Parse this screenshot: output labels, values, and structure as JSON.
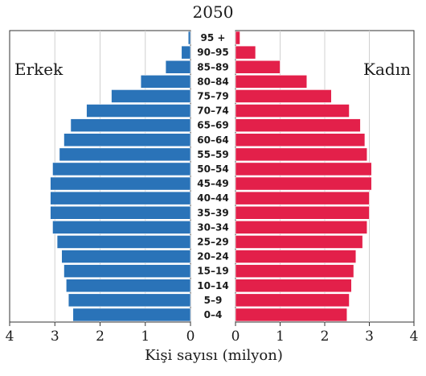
{
  "chart_data": {
    "type": "bar",
    "title": "2050",
    "xlabel": "Kişi sayısı (milyon)",
    "xlim": [
      0,
      4
    ],
    "grid": true,
    "x_ticks": [
      "4",
      "3",
      "2",
      "1",
      "0",
      "0",
      "1",
      "2",
      "3",
      "4"
    ],
    "categories": [
      "95 +",
      "90–95",
      "85–89",
      "80–84",
      "75–79",
      "70–74",
      "65–69",
      "60–64",
      "55–59",
      "50–54",
      "45–49",
      "40–44",
      "35–39",
      "30–34",
      "25–29",
      "20–24",
      "15–19",
      "10–14",
      "5–9",
      "0–4"
    ],
    "series": [
      {
        "name": "Erkek",
        "color": "#2a73b8",
        "values": [
          0.05,
          0.2,
          0.55,
          1.1,
          1.75,
          2.3,
          2.65,
          2.8,
          2.9,
          3.05,
          3.1,
          3.1,
          3.1,
          3.05,
          2.95,
          2.85,
          2.8,
          2.75,
          2.7,
          2.6
        ]
      },
      {
        "name": "Kadın",
        "color": "#e3204a",
        "values": [
          0.1,
          0.45,
          1.0,
          1.6,
          2.15,
          2.55,
          2.8,
          2.9,
          2.95,
          3.05,
          3.05,
          3.0,
          3.0,
          2.95,
          2.85,
          2.7,
          2.65,
          2.6,
          2.55,
          2.5
        ]
      }
    ]
  }
}
